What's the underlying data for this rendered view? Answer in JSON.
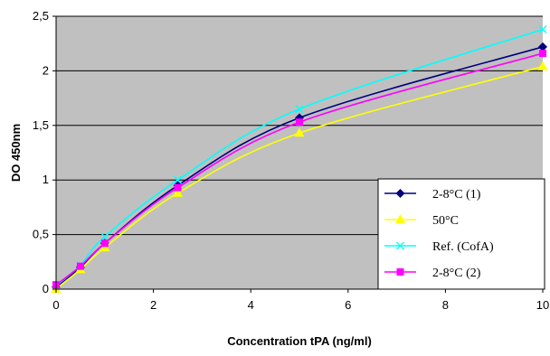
{
  "chart_data": {
    "type": "line",
    "title": "",
    "xlabel": "Concentration tPA (ng/ml)",
    "ylabel": "DO 450nm",
    "xlim": [
      0,
      10
    ],
    "ylim": [
      0,
      2.5
    ],
    "x_ticks": [
      0,
      2,
      4,
      6,
      8,
      10
    ],
    "x_tick_labels": [
      "0",
      "2",
      "4",
      "6",
      "8",
      "10"
    ],
    "y_ticks": [
      0,
      0.5,
      1,
      1.5,
      2,
      2.5
    ],
    "y_tick_labels": [
      "0",
      "0,5",
      "1",
      "1,5",
      "2",
      "2,5"
    ],
    "grid": "horizontal",
    "plot_background": "#c0c0c0",
    "legend_position": "bottom-right",
    "x": [
      0,
      0.5,
      1,
      2.5,
      5,
      10
    ],
    "series": [
      {
        "name": "2-8°C (1)",
        "color": "#000080",
        "marker": "diamond",
        "values": [
          0.02,
          0.2,
          0.42,
          0.95,
          1.57,
          2.22
        ]
      },
      {
        "name": "50°C",
        "color": "#ffff00",
        "marker": "triangle",
        "values": [
          0.0,
          0.18,
          0.38,
          0.88,
          1.43,
          2.04
        ]
      },
      {
        "name": "Ref. (CofA)",
        "color": "#00ffff",
        "marker": "x",
        "values": [
          0.03,
          0.22,
          0.48,
          1.0,
          1.65,
          2.38
        ]
      },
      {
        "name": "2-8°C (2)",
        "color": "#ff00ff",
        "marker": "square",
        "values": [
          0.04,
          0.21,
          0.42,
          0.93,
          1.53,
          2.16
        ]
      }
    ]
  }
}
